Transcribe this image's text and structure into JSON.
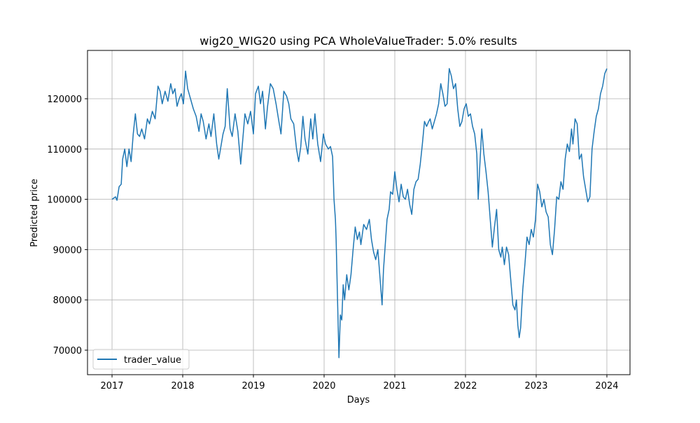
{
  "chart_data": {
    "type": "line",
    "title": "wig20_WIG20 using PCA WholeValueTrader: 5.0% results",
    "x_label": "Days",
    "y_label": "Predicted price",
    "x": [
      2017.0,
      2017.05,
      2017.07,
      2017.1,
      2017.13,
      2017.15,
      2017.18,
      2017.21,
      2017.24,
      2017.27,
      2017.3,
      2017.33,
      2017.36,
      2017.39,
      2017.42,
      2017.46,
      2017.5,
      2017.53,
      2017.57,
      2017.61,
      2017.65,
      2017.68,
      2017.71,
      2017.75,
      2017.79,
      2017.83,
      2017.86,
      2017.89,
      2017.92,
      2017.95,
      2017.98,
      2018.01,
      2018.04,
      2018.07,
      2018.11,
      2018.15,
      2018.19,
      2018.23,
      2018.26,
      2018.29,
      2018.33,
      2018.37,
      2018.4,
      2018.44,
      2018.48,
      2018.51,
      2018.54,
      2018.57,
      2018.6,
      2018.63,
      2018.67,
      2018.7,
      2018.74,
      2018.78,
      2018.82,
      2018.85,
      2018.88,
      2018.92,
      2018.96,
      2019.0,
      2019.03,
      2019.07,
      2019.1,
      2019.13,
      2019.17,
      2019.2,
      2019.24,
      2019.28,
      2019.32,
      2019.36,
      2019.39,
      2019.43,
      2019.47,
      2019.5,
      2019.53,
      2019.57,
      2019.61,
      2019.64,
      2019.67,
      2019.7,
      2019.73,
      2019.77,
      2019.81,
      2019.84,
      2019.87,
      2019.91,
      2019.95,
      2019.99,
      2020.02,
      2020.06,
      2020.09,
      2020.12,
      2020.14,
      2020.16,
      2020.17,
      2020.19,
      2020.21,
      2020.23,
      2020.25,
      2020.27,
      2020.29,
      2020.32,
      2020.35,
      2020.38,
      2020.41,
      2020.44,
      2020.47,
      2020.5,
      2020.52,
      2020.56,
      2020.6,
      2020.64,
      2020.67,
      2020.7,
      2020.73,
      2020.76,
      2020.79,
      2020.82,
      2020.84,
      2020.87,
      2020.89,
      2020.92,
      2020.94,
      2020.97,
      2021.0,
      2021.03,
      2021.06,
      2021.09,
      2021.12,
      2021.15,
      2021.18,
      2021.21,
      2021.24,
      2021.27,
      2021.3,
      2021.33,
      2021.36,
      2021.39,
      2021.42,
      2021.45,
      2021.48,
      2021.5,
      2021.53,
      2021.56,
      2021.59,
      2021.62,
      2021.65,
      2021.68,
      2021.71,
      2021.74,
      2021.77,
      2021.8,
      2021.83,
      2021.86,
      2021.89,
      2021.92,
      2021.95,
      2021.98,
      2022.01,
      2022.04,
      2022.07,
      2022.1,
      2022.13,
      2022.16,
      2022.18,
      2022.2,
      2022.23,
      2022.26,
      2022.29,
      2022.32,
      2022.35,
      2022.38,
      2022.41,
      2022.44,
      2022.47,
      2022.5,
      2022.52,
      2022.55,
      2022.58,
      2022.61,
      2022.64,
      2022.67,
      2022.7,
      2022.72,
      2022.74,
      2022.76,
      2022.78,
      2022.81,
      2022.84,
      2022.87,
      2022.9,
      2022.93,
      2022.96,
      2022.99,
      2023.02,
      2023.05,
      2023.08,
      2023.11,
      2023.14,
      2023.17,
      2023.2,
      2023.23,
      2023.26,
      2023.29,
      2023.32,
      2023.35,
      2023.38,
      2023.41,
      2023.44,
      2023.47,
      2023.5,
      2023.52,
      2023.55,
      2023.58,
      2023.61,
      2023.64,
      2023.67,
      2023.7,
      2023.73,
      2023.76,
      2023.79,
      2023.82,
      2023.85,
      2023.88,
      2023.91,
      2023.94,
      2023.97,
      2024.0
    ],
    "series": [
      {
        "name": "trader_value",
        "color": "#1f77b4",
        "values": [
          100000,
          100500,
          99800,
          102500,
          103000,
          108000,
          110000,
          106500,
          110000,
          107500,
          113000,
          117000,
          113000,
          112500,
          114000,
          112000,
          116000,
          115000,
          117500,
          116000,
          122500,
          121500,
          119000,
          121500,
          119500,
          123000,
          121000,
          122000,
          118500,
          120000,
          121000,
          119000,
          125500,
          122000,
          120000,
          118000,
          116500,
          113500,
          117000,
          115500,
          112000,
          115000,
          112500,
          117000,
          111000,
          108000,
          110500,
          113000,
          114500,
          122000,
          114000,
          112500,
          117000,
          113500,
          107000,
          112000,
          117000,
          115000,
          117500,
          113000,
          121000,
          122500,
          119000,
          121500,
          114000,
          118500,
          123000,
          122000,
          119000,
          115500,
          113000,
          121500,
          120500,
          119000,
          116000,
          115000,
          110000,
          107500,
          110500,
          116500,
          112000,
          109000,
          116000,
          112000,
          117000,
          111000,
          107500,
          113000,
          111000,
          110000,
          110500,
          108500,
          100000,
          96000,
          92000,
          80000,
          68500,
          77000,
          76000,
          83000,
          80000,
          85000,
          82000,
          85000,
          90000,
          94500,
          92000,
          93500,
          91000,
          95000,
          94000,
          96000,
          92000,
          89500,
          88000,
          90000,
          84500,
          79000,
          86000,
          92000,
          96000,
          98000,
          101500,
          101000,
          105500,
          102000,
          99500,
          103000,
          100500,
          100000,
          102000,
          99000,
          97000,
          102000,
          103500,
          104000,
          107000,
          111000,
          115500,
          114500,
          115500,
          116000,
          114000,
          115500,
          117000,
          119000,
          123000,
          121000,
          118500,
          119000,
          126000,
          124500,
          122000,
          123000,
          118000,
          114500,
          115500,
          118000,
          119000,
          116500,
          117000,
          114500,
          113000,
          109000,
          100000,
          106000,
          114000,
          109000,
          105500,
          101500,
          96000,
          90500,
          94500,
          98000,
          90000,
          88500,
          90500,
          87000,
          90500,
          89000,
          84000,
          79000,
          78000,
          80000,
          75000,
          72500,
          74500,
          82000,
          87000,
          92500,
          91000,
          94000,
          92500,
          96000,
          103000,
          101500,
          98500,
          100000,
          97500,
          96500,
          91000,
          89000,
          94000,
          100500,
          100000,
          103500,
          102000,
          108000,
          111000,
          109500,
          114000,
          111000,
          116000,
          115000,
          108000,
          109000,
          104500,
          102000,
          99500,
          100500,
          110000,
          113500,
          116500,
          118000,
          121000,
          122500,
          125000,
          126000
        ]
      }
    ],
    "xlim": [
      2016.653,
      2024.327
    ],
    "xticks": [
      2017,
      2018,
      2019,
      2020,
      2021,
      2022,
      2023,
      2024
    ],
    "ylim": [
      65125,
      129610
    ],
    "yticks": [
      70000,
      80000,
      90000,
      100000,
      110000,
      120000
    ],
    "grid": true,
    "legend": "lower left"
  }
}
